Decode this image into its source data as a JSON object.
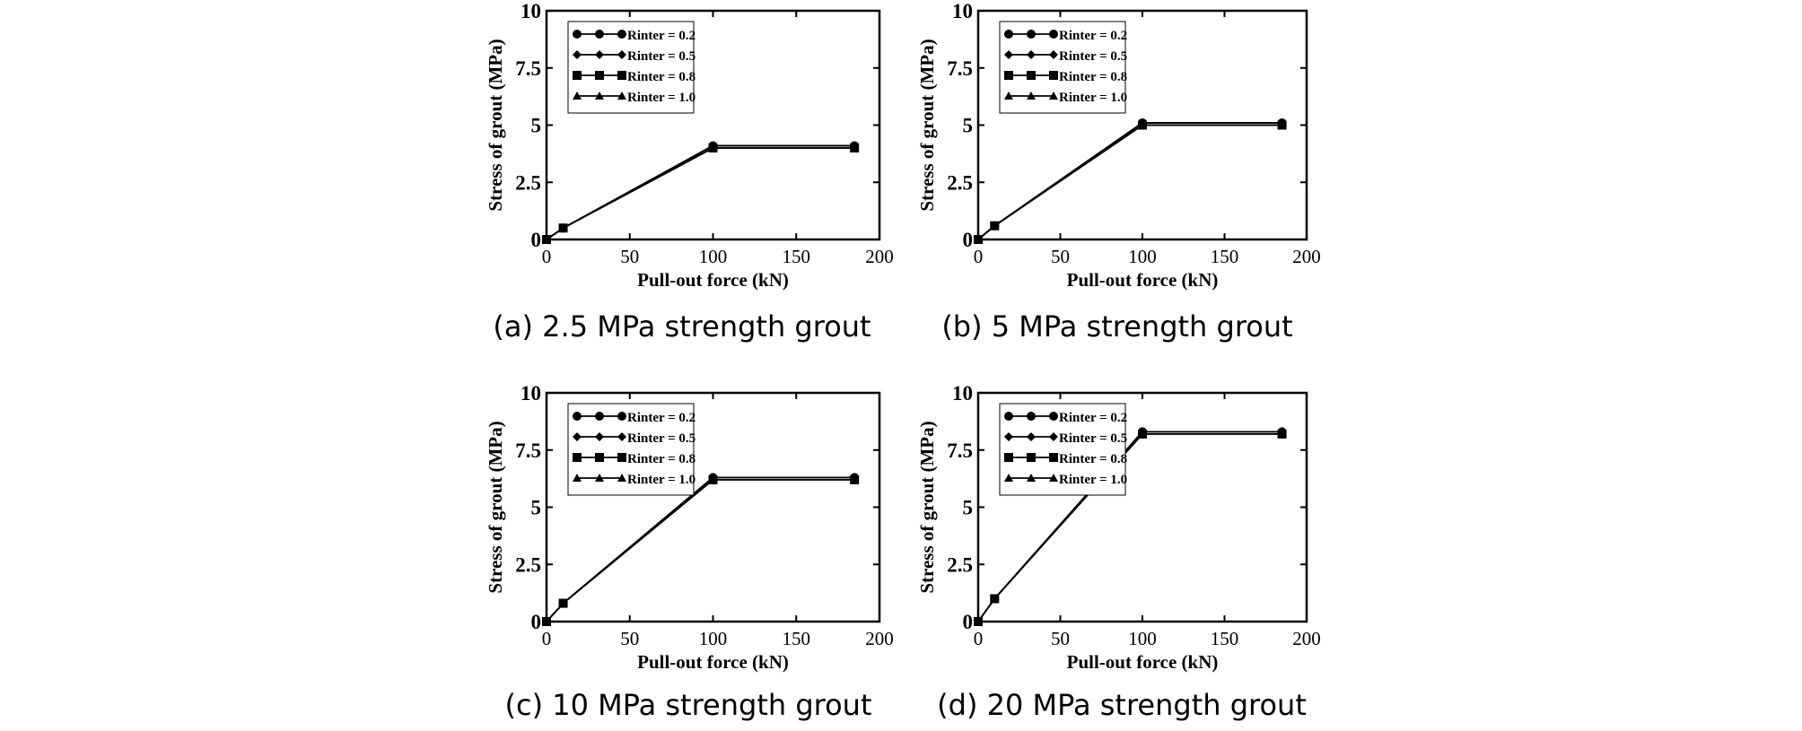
{
  "chart_data": [
    {
      "type": "line",
      "caption": "(a) 2.5 MPa strength grout",
      "xlabel": "Pull-out force (kN)",
      "ylabel": "Stress of grout (MPa)",
      "xlim": [
        0,
        200
      ],
      "ylim": [
        0,
        10
      ],
      "xticks": [
        "0",
        "50",
        "100",
        "150",
        "200"
      ],
      "yticks": [
        "0",
        "2.5",
        "5",
        "7.5",
        "10"
      ],
      "x": [
        0,
        10,
        100,
        185
      ],
      "legend_position": "top-left",
      "series": [
        {
          "name": "Rinter = 0.2",
          "marker": "circle",
          "values": [
            0,
            0.5,
            4.1,
            4.1
          ]
        },
        {
          "name": "Rinter = 0.5",
          "marker": "diamond",
          "values": [
            0,
            0.5,
            4.1,
            4.1
          ]
        },
        {
          "name": "Rinter = 0.8",
          "marker": "square",
          "values": [
            0,
            0.5,
            4.0,
            4.0
          ]
        },
        {
          "name": "Rinter = 1.0",
          "marker": "triangle",
          "values": [
            0,
            0.5,
            4.0,
            4.0
          ]
        }
      ]
    },
    {
      "type": "line",
      "caption": "(b) 5 MPa strength grout",
      "xlabel": "Pull-out force (kN)",
      "ylabel": "Stress of grout (MPa)",
      "xlim": [
        0,
        200
      ],
      "ylim": [
        0,
        10
      ],
      "xticks": [
        "0",
        "50",
        "100",
        "150",
        "200"
      ],
      "yticks": [
        "0",
        "2.5",
        "5",
        "7.5",
        "10"
      ],
      "x": [
        0,
        10,
        100,
        185
      ],
      "legend_position": "top-left",
      "series": [
        {
          "name": "Rinter = 0.2",
          "marker": "circle",
          "values": [
            0,
            0.6,
            5.1,
            5.1
          ]
        },
        {
          "name": "Rinter = 0.5",
          "marker": "diamond",
          "values": [
            0,
            0.6,
            5.1,
            5.1
          ]
        },
        {
          "name": "Rinter = 0.8",
          "marker": "square",
          "values": [
            0,
            0.6,
            5.0,
            5.0
          ]
        },
        {
          "name": "Rinter = 1.0",
          "marker": "triangle",
          "values": [
            0,
            0.6,
            5.0,
            5.0
          ]
        }
      ]
    },
    {
      "type": "line",
      "caption": "(c) 10 MPa strength grout",
      "xlabel": "Pull-out force (kN)",
      "ylabel": "Stress of grout (MPa)",
      "xlim": [
        0,
        200
      ],
      "ylim": [
        0,
        10
      ],
      "xticks": [
        "0",
        "50",
        "100",
        "150",
        "200"
      ],
      "yticks": [
        "0",
        "2.5",
        "5",
        "7.5",
        "10"
      ],
      "x": [
        0,
        10,
        100,
        185
      ],
      "legend_position": "top-left",
      "series": [
        {
          "name": "Rinter = 0.2",
          "marker": "circle",
          "values": [
            0,
            0.8,
            6.3,
            6.3
          ]
        },
        {
          "name": "Rinter = 0.5",
          "marker": "diamond",
          "values": [
            0,
            0.8,
            6.3,
            6.3
          ]
        },
        {
          "name": "Rinter = 0.8",
          "marker": "square",
          "values": [
            0,
            0.8,
            6.2,
            6.2
          ]
        },
        {
          "name": "Rinter = 1.0",
          "marker": "triangle",
          "values": [
            0,
            0.8,
            6.2,
            6.2
          ]
        }
      ]
    },
    {
      "type": "line",
      "caption": "(d) 20 MPa strength grout",
      "xlabel": "Pull-out force (kN)",
      "ylabel": "Stress of grout (MPa)",
      "xlim": [
        0,
        200
      ],
      "ylim": [
        0,
        10
      ],
      "xticks": [
        "0",
        "50",
        "100",
        "150",
        "200"
      ],
      "yticks": [
        "0",
        "2.5",
        "5",
        "7.5",
        "10"
      ],
      "x": [
        0,
        10,
        100,
        185
      ],
      "legend_position": "top-left",
      "series": [
        {
          "name": "Rinter = 0.2",
          "marker": "circle",
          "values": [
            0,
            1.0,
            8.3,
            8.3
          ]
        },
        {
          "name": "Rinter = 0.5",
          "marker": "diamond",
          "values": [
            0,
            1.0,
            8.3,
            8.3
          ]
        },
        {
          "name": "Rinter = 0.8",
          "marker": "square",
          "values": [
            0,
            1.0,
            8.2,
            8.2
          ]
        },
        {
          "name": "Rinter = 1.0",
          "marker": "triangle",
          "values": [
            0,
            1.0,
            8.2,
            8.2
          ]
        }
      ]
    }
  ]
}
